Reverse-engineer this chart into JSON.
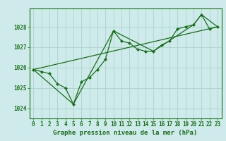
{
  "title": "Graphe pression niveau de la mer (hPa)",
  "background_color": "#ceeaea",
  "grid_color": "#a8d5c8",
  "line_color": "#1a6e1a",
  "ylim": [
    1023.5,
    1028.9
  ],
  "yticks": [
    1024,
    1025,
    1026,
    1027,
    1028
  ],
  "xlim": [
    -0.5,
    23.5
  ],
  "series1_x": [
    0,
    1,
    2,
    3,
    4,
    5,
    6,
    7,
    8,
    9,
    10,
    11,
    12,
    13,
    14,
    15,
    16,
    17,
    18,
    19,
    20,
    21,
    22,
    23
  ],
  "series1_y": [
    1025.9,
    1025.8,
    1025.7,
    1025.2,
    1025.0,
    1024.2,
    1025.3,
    1025.5,
    1025.9,
    1026.4,
    1027.8,
    1027.3,
    1027.2,
    1026.9,
    1026.8,
    1026.8,
    1027.1,
    1027.3,
    1027.9,
    1028.0,
    1028.1,
    1028.6,
    1027.9,
    1028.0
  ],
  "series2_x": [
    0,
    5,
    10,
    15,
    20,
    21,
    23
  ],
  "series2_y": [
    1025.9,
    1024.2,
    1027.8,
    1026.8,
    1028.1,
    1028.6,
    1028.0
  ],
  "series3_x": [
    0,
    23
  ],
  "series3_y": [
    1025.9,
    1028.0
  ],
  "title_fontsize": 6.5,
  "tick_fontsize": 5.5
}
